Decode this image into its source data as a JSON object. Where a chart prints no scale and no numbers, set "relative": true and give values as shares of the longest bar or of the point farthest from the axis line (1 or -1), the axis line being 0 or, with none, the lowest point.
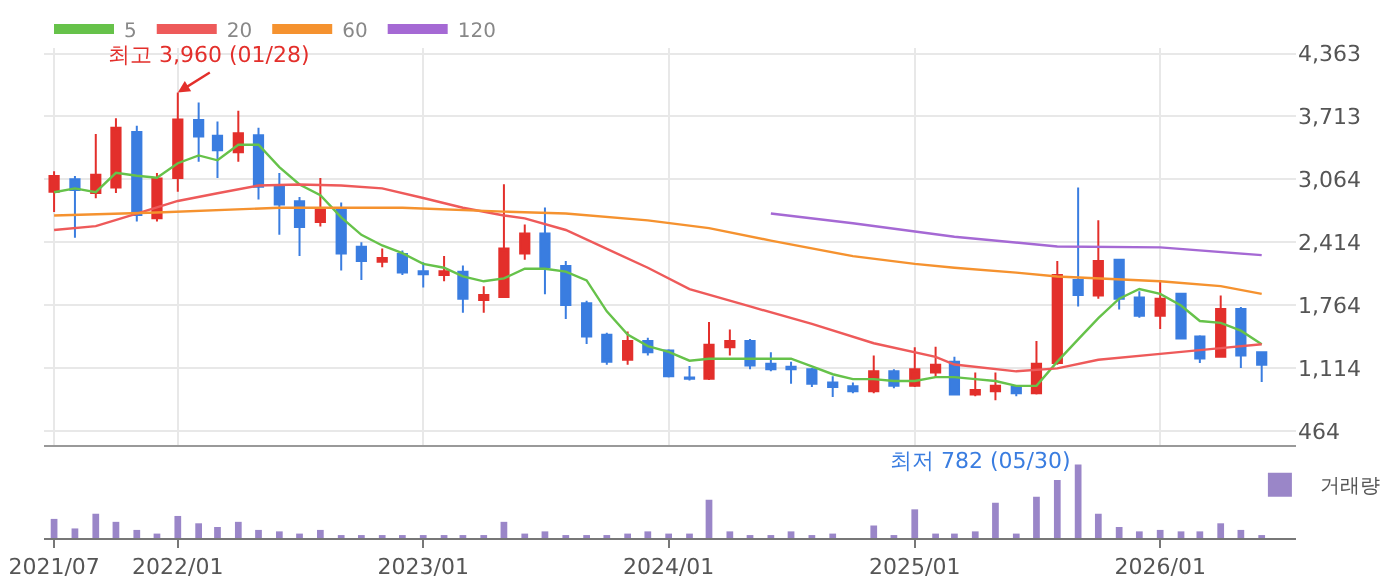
{
  "chart_data": [
    {
      "type": "candlestick",
      "x": [
        "2021-07",
        "2021-08",
        "2021-09",
        "2021-10",
        "2021-11",
        "2021-12",
        "2022-01",
        "2022-02",
        "2022-03",
        "2022-04",
        "2022-05",
        "2022-06",
        "2022-07",
        "2022-08",
        "2022-09",
        "2022-10",
        "2022-11",
        "2022-12",
        "2023-01",
        "2023-02",
        "2023-03",
        "2023-04",
        "2023-05",
        "2023-06",
        "2023-07",
        "2023-08",
        "2023-09",
        "2023-10",
        "2023-11",
        "2023-12",
        "2024-01",
        "2024-02",
        "2024-03",
        "2024-04",
        "2024-05",
        "2024-06",
        "2024-07",
        "2024-08",
        "2024-09",
        "2024-10",
        "2024-11",
        "2024-12",
        "2025-01",
        "2025-02",
        "2025-03",
        "2025-04",
        "2025-05",
        "2025-06",
        "2025-07",
        "2025-08",
        "2025-09",
        "2025-10",
        "2025-11",
        "2025-12",
        "2026-01",
        "2026-02",
        "2026-03",
        "2026-04",
        "2026-05",
        "2026-06"
      ],
      "ohlc": [
        [
          2934,
          3148,
          2726,
          3097
        ],
        [
          3064,
          3097,
          2460,
          2954
        ],
        [
          2921,
          3532,
          2869,
          3110
        ],
        [
          2980,
          3695,
          2921,
          3597
        ],
        [
          3552,
          3617,
          2629,
          2694
        ],
        [
          2661,
          3129,
          2629,
          3071
        ],
        [
          3077,
          3960,
          2934,
          3682
        ],
        [
          3675,
          3857,
          3246,
          3506
        ],
        [
          3513,
          3662,
          3077,
          3363
        ],
        [
          3344,
          3773,
          3246,
          3539
        ],
        [
          3519,
          3597,
          2856,
          2986
        ],
        [
          2999,
          3129,
          2492,
          2804
        ],
        [
          2837,
          2882,
          2271,
          2570
        ],
        [
          2622,
          3077,
          2576,
          2765
        ],
        [
          2759,
          2824,
          2122,
          2297
        ],
        [
          2368,
          2414,
          2024,
          2219
        ],
        [
          2213,
          2349,
          2154,
          2252
        ],
        [
          2291,
          2329,
          2076,
          2102
        ],
        [
          2115,
          2206,
          1946,
          2083
        ],
        [
          2076,
          2271,
          2011,
          2115
        ],
        [
          2109,
          2174,
          1686,
          1829
        ],
        [
          1816,
          1959,
          1686,
          1868
        ],
        [
          1849,
          3012,
          1849,
          2349
        ],
        [
          2297,
          2596,
          2232,
          2505
        ],
        [
          2505,
          2772,
          1875,
          2154
        ],
        [
          2167,
          2219,
          1621,
          1764
        ],
        [
          1784,
          1810,
          1361,
          1439
        ],
        [
          1459,
          1478,
          1147,
          1179
        ],
        [
          1199,
          1491,
          1147,
          1393
        ],
        [
          1393,
          1426,
          1244,
          1277
        ],
        [
          1296,
          1309,
          1017,
          1030
        ],
        [
          1017,
          1134,
          984,
          1004
        ],
        [
          1004,
          1589,
          991,
          1355
        ],
        [
          1329,
          1511,
          1244,
          1393
        ],
        [
          1393,
          1413,
          1101,
          1140
        ],
        [
          1159,
          1277,
          1082,
          1101
        ],
        [
          1127,
          1179,
          952,
          1101
        ],
        [
          1101,
          1114,
          919,
          952
        ],
        [
          965,
          1030,
          815,
          919
        ],
        [
          926,
          965,
          854,
          874
        ],
        [
          874,
          1244,
          854,
          1082
        ],
        [
          1082,
          1101,
          906,
          932
        ],
        [
          932,
          1329,
          919,
          1101
        ],
        [
          1069,
          1335,
          1017,
          1147
        ],
        [
          1179,
          1231,
          841,
          841
        ],
        [
          841,
          1069,
          822,
          886
        ],
        [
          874,
          1069,
          782,
          932
        ],
        [
          919,
          932,
          822,
          854
        ],
        [
          854,
          1393,
          841,
          1159
        ],
        [
          1166,
          2219,
          1147,
          2076
        ],
        [
          2024,
          2980,
          1751,
          1868
        ],
        [
          1862,
          2641,
          1829,
          2219
        ],
        [
          2232,
          2232,
          1719,
          1829
        ],
        [
          1842,
          1907,
          1634,
          1653
        ],
        [
          1653,
          2024,
          1517,
          1829
        ],
        [
          1881,
          1881,
          1419,
          1419
        ],
        [
          1439,
          1452,
          1166,
          1212
        ],
        [
          1231,
          1862,
          1231,
          1725
        ],
        [
          1725,
          1744,
          1114,
          1244
        ],
        [
          1277,
          1277,
          971,
          1147
        ]
      ],
      "colors": [
        "#e32f2b",
        "#3a7de0",
        "#e32f2b",
        "#e32f2b",
        "#3a7de0",
        "#e32f2b",
        "#e32f2b",
        "#3a7de0",
        "#3a7de0",
        "#e32f2b",
        "#3a7de0",
        "#3a7de0",
        "#3a7de0",
        "#e32f2b",
        "#3a7de0",
        "#3a7de0",
        "#e32f2b",
        "#3a7de0",
        "#3a7de0",
        "#e32f2b",
        "#3a7de0",
        "#e32f2b",
        "#e32f2b",
        "#e32f2b",
        "#3a7de0",
        "#3a7de0",
        "#3a7de0",
        "#3a7de0",
        "#e32f2b",
        "#3a7de0",
        "#3a7de0",
        "#3a7de0",
        "#e32f2b",
        "#e32f2b",
        "#3a7de0",
        "#3a7de0",
        "#3a7de0",
        "#3a7de0",
        "#3a7de0",
        "#3a7de0",
        "#e32f2b",
        "#3a7de0",
        "#e32f2b",
        "#e32f2b",
        "#3a7de0",
        "#e32f2b",
        "#e32f2b",
        "#3a7de0",
        "#e32f2b",
        "#e32f2b",
        "#3a7de0",
        "#e32f2b",
        "#3a7de0",
        "#3a7de0",
        "#e32f2b",
        "#3a7de0",
        "#3a7de0",
        "#e32f2b",
        "#3a7de0",
        "#3a7de0"
      ],
      "series": [
        {
          "name": "5",
          "type": "line",
          "color": "#66c24a",
          "x": [
            "2021-07",
            "2021-08",
            "2021-09",
            "2021-10",
            "2021-11",
            "2021-12",
            "2022-01",
            "2022-02",
            "2022-03",
            "2022-04",
            "2022-05",
            "2022-06",
            "2022-07",
            "2022-08",
            "2022-09",
            "2022-10",
            "2022-11",
            "2022-12",
            "2023-01",
            "2023-02",
            "2023-03",
            "2023-04",
            "2023-05",
            "2023-06",
            "2023-07",
            "2023-08",
            "2023-09",
            "2023-10",
            "2023-11",
            "2023-12",
            "2024-01",
            "2024-02",
            "2024-03",
            "2024-04",
            "2024-05",
            "2024-06",
            "2024-07",
            "2024-08",
            "2024-09",
            "2024-10",
            "2024-11",
            "2024-12",
            "2025-01",
            "2025-02",
            "2025-03",
            "2025-04",
            "2025-05",
            "2025-06",
            "2025-07",
            "2025-08",
            "2025-09",
            "2025-10",
            "2025-11",
            "2025-12",
            "2026-01",
            "2026-02",
            "2026-03",
            "2026-04",
            "2026-05",
            "2026-06"
          ],
          "values": [
            2930,
            2970,
            2930,
            3130,
            3100,
            3080,
            3230,
            3310,
            3260,
            3420,
            3420,
            3190,
            3010,
            2900,
            2670,
            2490,
            2380,
            2300,
            2190,
            2150,
            2060,
            2010,
            2040,
            2140,
            2140,
            2110,
            2020,
            1700,
            1460,
            1340,
            1280,
            1190,
            1210,
            1210,
            1210,
            1210,
            1210,
            1130,
            1050,
            1000,
            1000,
            980,
            980,
            1020,
            1020,
            1000,
            980,
            930,
            930,
            1180,
            1410,
            1630,
            1830,
            1930,
            1880,
            1760,
            1600,
            1580,
            1500,
            1360
          ]
        },
        {
          "name": "20",
          "type": "line",
          "color": "#ee5a5a",
          "x": [
            "2021-07",
            "2021-09",
            "2021-11",
            "2022-01",
            "2022-03",
            "2022-05",
            "2022-07",
            "2022-09",
            "2022-11",
            "2023-01",
            "2023-03",
            "2023-05",
            "2023-06",
            "2023-08",
            "2023-12",
            "2024-02",
            "2024-05",
            "2024-08",
            "2024-11",
            "2025-02",
            "2025-03",
            "2025-06",
            "2025-08",
            "2025-10",
            "2026-01",
            "2026-04",
            "2026-06"
          ],
          "values": [
            2540,
            2580,
            2710,
            2840,
            2920,
            3000,
            3010,
            3000,
            2970,
            2870,
            2770,
            2690,
            2660,
            2540,
            2150,
            1930,
            1750,
            1570,
            1370,
            1230,
            1150,
            1080,
            1110,
            1200,
            1260,
            1320,
            1360
          ]
        },
        {
          "name": "60",
          "type": "line",
          "color": "#f5922f",
          "x": [
            "2021-07",
            "2021-12",
            "2022-06",
            "2022-12",
            "2023-05",
            "2023-08",
            "2023-12",
            "2024-03",
            "2024-06",
            "2024-10",
            "2025-01",
            "2025-03",
            "2025-06",
            "2025-08",
            "2026-01",
            "2026-04",
            "2026-06"
          ],
          "values": [
            2690,
            2720,
            2770,
            2770,
            2730,
            2710,
            2640,
            2560,
            2430,
            2270,
            2190,
            2150,
            2100,
            2060,
            2010,
            1960,
            1880
          ]
        },
        {
          "name": "120",
          "type": "line",
          "color": "#a569d4",
          "x": [
            "2024-06",
            "2024-10",
            "2025-03",
            "2025-08",
            "2026-01",
            "2026-06"
          ],
          "values": [
            2710,
            2610,
            2470,
            2370,
            2360,
            2280
          ]
        }
      ],
      "annotations": [
        {
          "text": "최고 3,960 (01/28)",
          "x": "2022-01",
          "y": 3960
        },
        {
          "text": "최저 782 (05/30)",
          "x": "2025-05",
          "y": 782
        }
      ],
      "xlim": [
        "2021-06-16",
        "2026-07-22"
      ],
      "xticks": [
        {
          "value": "2021-07",
          "label": null
        },
        {
          "value": "2022-01",
          "label": null
        },
        {
          "value": "2023-01",
          "label": null
        },
        {
          "value": "2024-01",
          "label": null
        },
        {
          "value": "2025-01",
          "label": null
        },
        {
          "value": "2026-01",
          "label": null
        }
      ],
      "ylim": [
        320,
        4420
      ],
      "yticks": [
        {
          "value": 464,
          "label": "464"
        },
        {
          "value": 1114,
          "label": "1,114"
        },
        {
          "value": 1764,
          "label": "1,764"
        },
        {
          "value": 2414,
          "label": "2,414"
        },
        {
          "value": 3064,
          "label": "3,064"
        },
        {
          "value": 3713,
          "label": "3,713"
        },
        {
          "value": 4363,
          "label": "4,363"
        }
      ],
      "grid": true,
      "legend": "top left",
      "tick_labels": "y"
    },
    {
      "type": "bar",
      "relative": true,
      "x": [
        "2021-07",
        "2021-08",
        "2021-09",
        "2021-10",
        "2021-11",
        "2021-12",
        "2022-01",
        "2022-02",
        "2022-03",
        "2022-04",
        "2022-05",
        "2022-06",
        "2022-07",
        "2022-08",
        "2022-09",
        "2022-10",
        "2022-11",
        "2022-12",
        "2023-01",
        "2023-02",
        "2023-03",
        "2023-04",
        "2023-05",
        "2023-06",
        "2023-07",
        "2023-08",
        "2023-09",
        "2023-10",
        "2023-11",
        "2023-12",
        "2024-01",
        "2024-02",
        "2024-03",
        "2024-04",
        "2024-05",
        "2024-06",
        "2024-07",
        "2024-08",
        "2024-09",
        "2024-10",
        "2024-11",
        "2024-12",
        "2025-01",
        "2025-02",
        "2025-03",
        "2025-04",
        "2025-05",
        "2025-06",
        "2025-07",
        "2025-08",
        "2025-09",
        "2025-10",
        "2025-11",
        "2025-12",
        "2026-01",
        "2026-02",
        "2026-03",
        "2026-04",
        "2026-05",
        "2026-06"
      ],
      "series": [
        {
          "name": "거래량",
          "color": "#9a86c8",
          "values": [
            0.26,
            0.13,
            0.33,
            0.22,
            0.11,
            0.06,
            0.3,
            0.2,
            0.15,
            0.22,
            0.11,
            0.09,
            0.06,
            0.11,
            0.04,
            0.04,
            0.04,
            0.04,
            0.04,
            0.04,
            0.04,
            0.04,
            0.22,
            0.06,
            0.09,
            0.04,
            0.04,
            0.04,
            0.06,
            0.09,
            0.06,
            0.06,
            0.52,
            0.09,
            0.04,
            0.04,
            0.09,
            0.04,
            0.06,
            0,
            0.17,
            0.04,
            0.39,
            0.06,
            0.06,
            0.09,
            0.48,
            0.06,
            0.56,
            0.79,
            1,
            0.33,
            0.15,
            0.09,
            0.11,
            0.09,
            0.09,
            0.2,
            0.11,
            0.04
          ]
        }
      ],
      "xlim": [
        "2021-06-16",
        "2026-07-22"
      ],
      "xticks": [
        {
          "value": "2021-07",
          "label": "2021/07"
        },
        {
          "value": "2022-01",
          "label": "2022/01"
        },
        {
          "value": "2023-01",
          "label": "2023/01"
        },
        {
          "value": "2024-01",
          "label": "2024/01"
        },
        {
          "value": "2025-01",
          "label": "2025/01"
        },
        {
          "value": "2026-01",
          "label": "2026/01"
        }
      ],
      "legend": "top right",
      "tick_labels": "x"
    }
  ]
}
